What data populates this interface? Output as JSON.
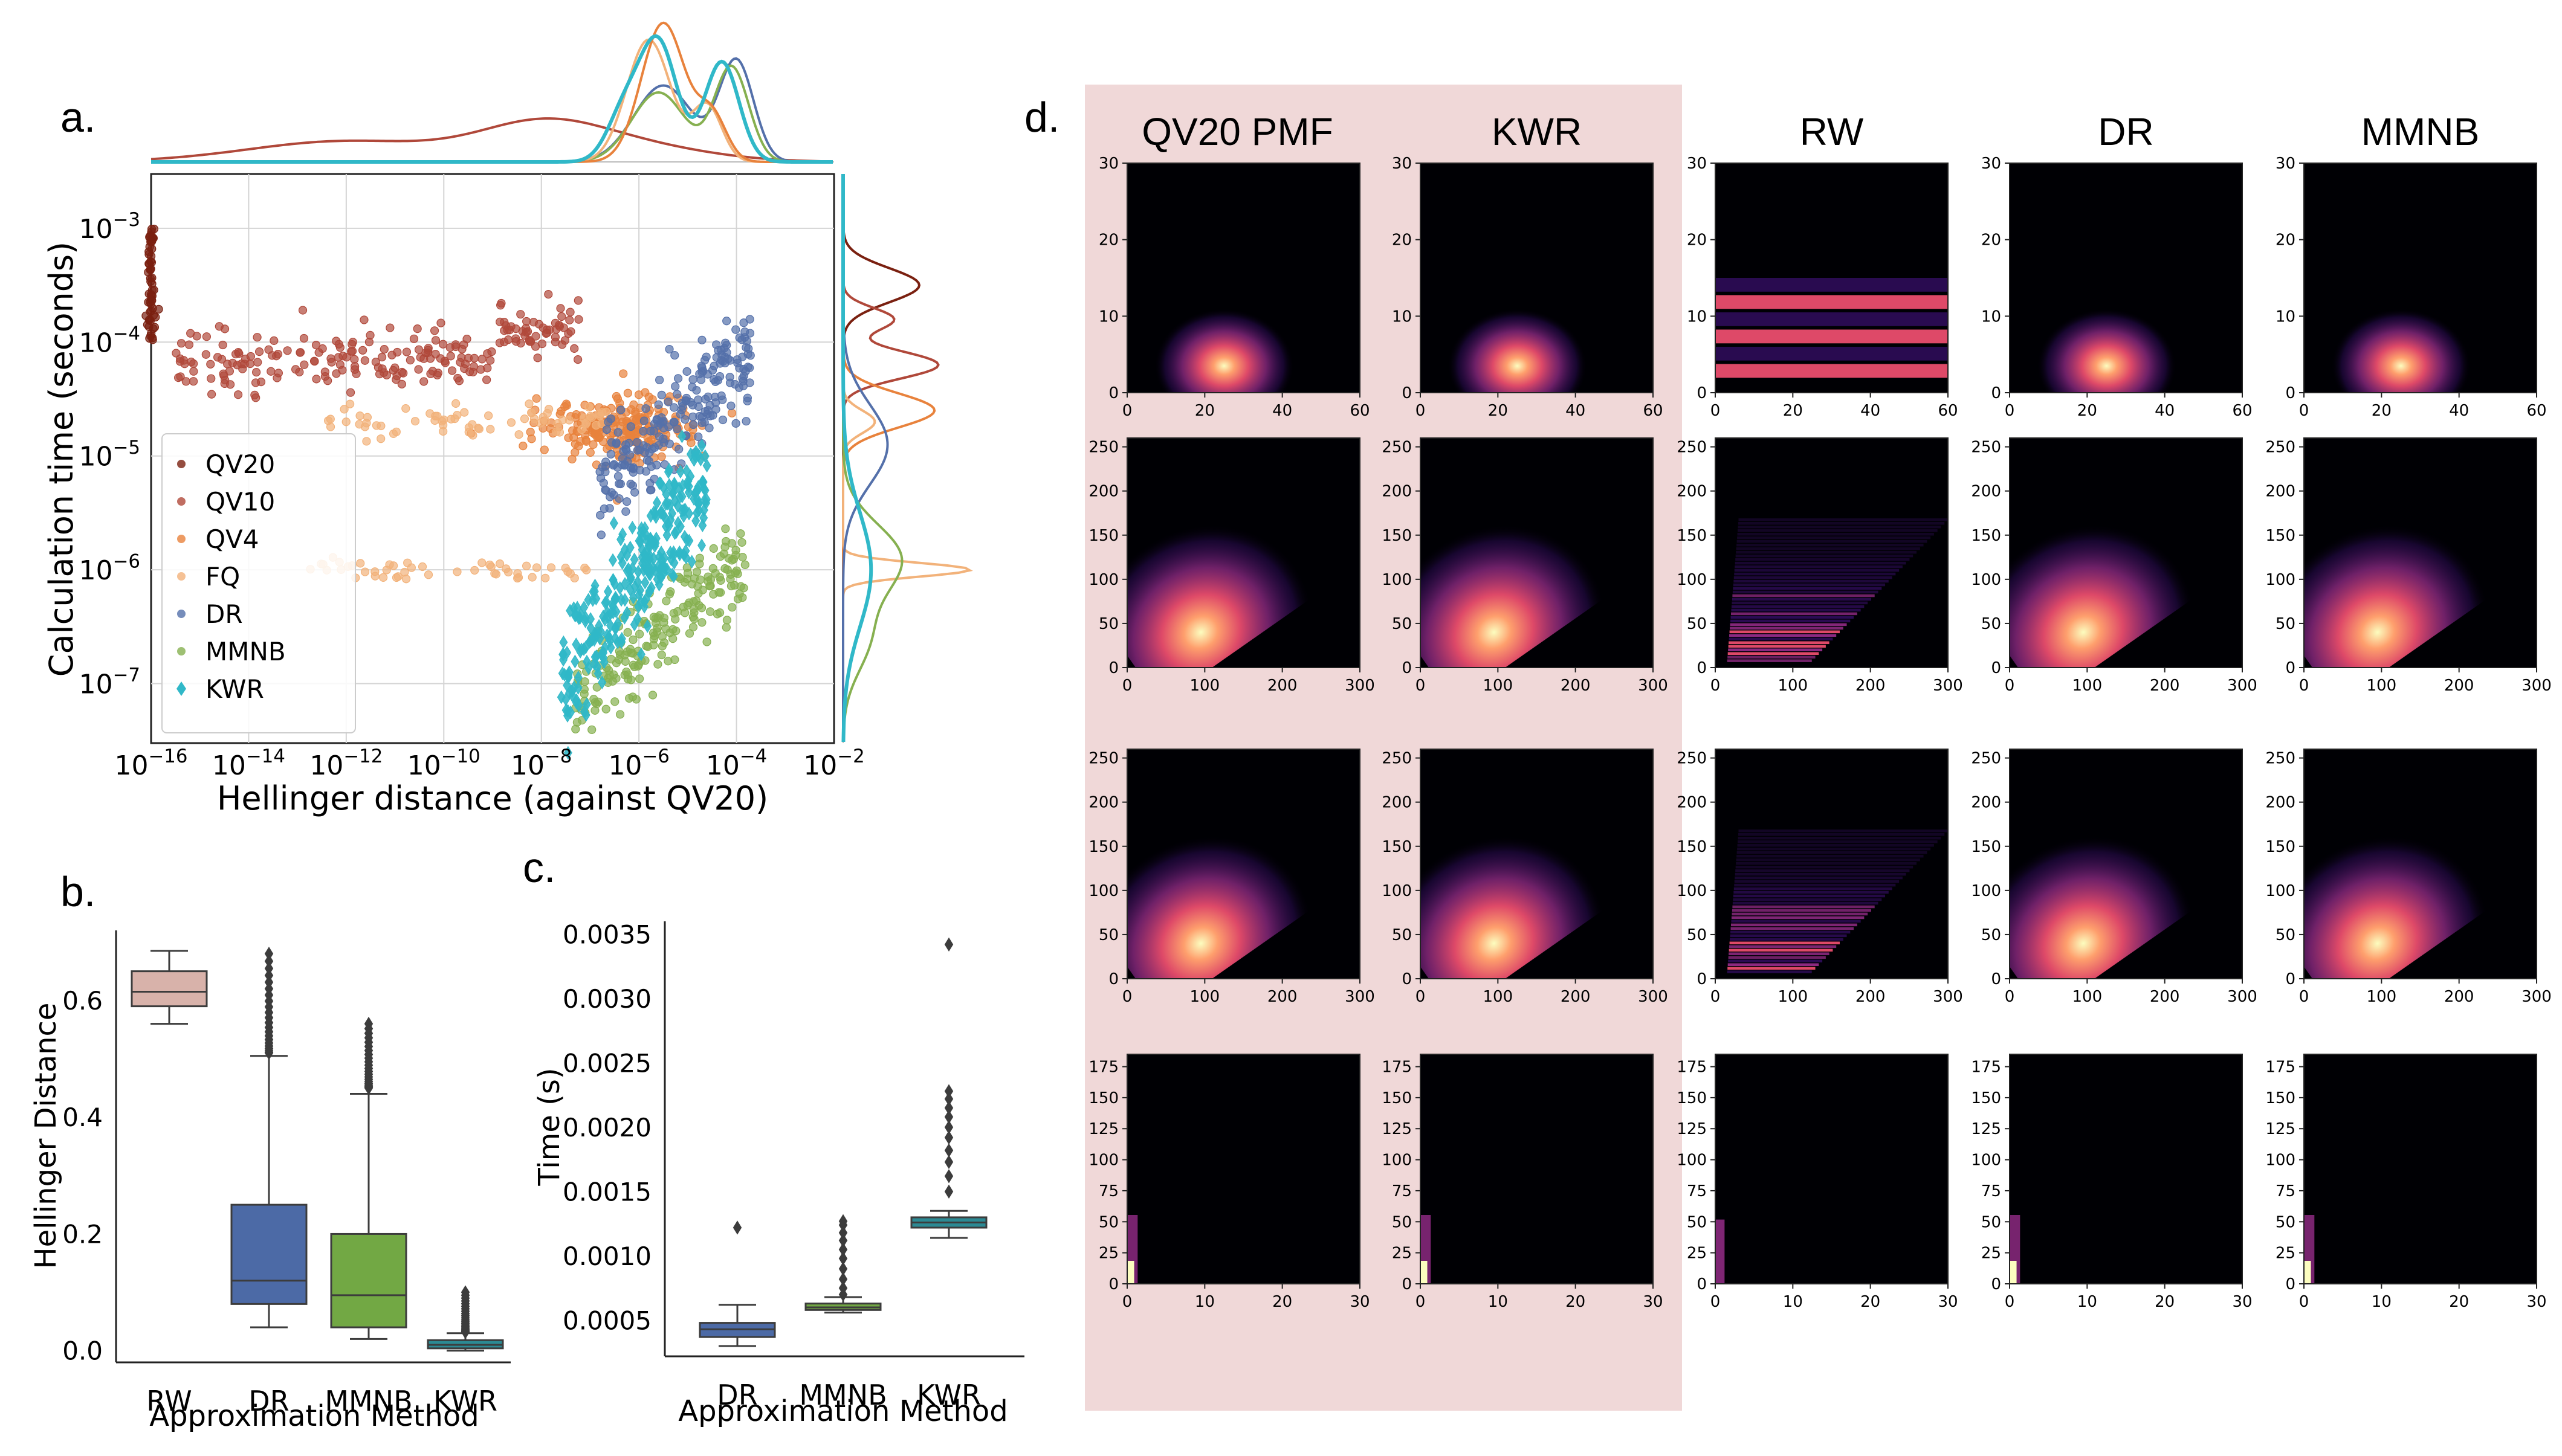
{
  "panel_labels": {
    "a": "a.",
    "b": "b.",
    "c": "c.",
    "d": "d."
  },
  "colors": {
    "QV20": "#7a2010",
    "QV10": "#b0483a",
    "QV4": "#e8823c",
    "FQ": "#f2b27a",
    "DR": "#5470aa",
    "MMNB": "#86b050",
    "KWR": "#30b8c8",
    "RW_box": "#d8b2aa",
    "DR_box": "#4c6aa6",
    "MMNB_box": "#72a844",
    "KWR_box": "#2c8a94",
    "shade": "#f0d8d8"
  },
  "chart_data": [
    {
      "id": "a",
      "type": "scatter",
      "xlabel": "Hellinger distance (against QV20)",
      "ylabel": "Calculation time (seconds)",
      "xscale": "log",
      "yscale": "log",
      "xlim": [
        1e-16,
        0.01
      ],
      "ylim": [
        3e-08,
        0.003
      ],
      "grid": true,
      "legend": "bottom-left",
      "x_ticks": [
        {
          "base": "10",
          "exp": "−16"
        },
        {
          "base": "10",
          "exp": "−14"
        },
        {
          "base": "10",
          "exp": "−12"
        },
        {
          "base": "10",
          "exp": "−10"
        },
        {
          "base": "10",
          "exp": "−8"
        },
        {
          "base": "10",
          "exp": "−6"
        },
        {
          "base": "10",
          "exp": "−4"
        },
        {
          "base": "10",
          "exp": "−2"
        }
      ],
      "y_ticks": [
        {
          "base": "10",
          "exp": "−3"
        },
        {
          "base": "10",
          "exp": "−4"
        },
        {
          "base": "10",
          "exp": "−5"
        },
        {
          "base": "10",
          "exp": "−6"
        },
        {
          "base": "10",
          "exp": "−7"
        }
      ],
      "series": [
        {
          "name": "QV20",
          "marker": "circle",
          "x_log_range": [
            -16,
            -16
          ],
          "y_log_range": [
            -4.0,
            -3.0
          ],
          "n": 60
        },
        {
          "name": "QV10",
          "marker": "circle",
          "x_log_range": [
            -15.5,
            -7.2
          ],
          "y_log_range": [
            -4.35,
            -3.7
          ],
          "n": 230
        },
        {
          "name": "QV4",
          "marker": "circle",
          "x_log_range": [
            -7.5,
            -4.3
          ],
          "y_log_range": [
            -5.1,
            -4.4
          ],
          "n": 230
        },
        {
          "name": "FQ",
          "marker": "circle",
          "x_log_range": [
            -13.2,
            -6.2
          ],
          "y_log_range": [
            -6.1,
            -4.6
          ],
          "n": 120
        },
        {
          "name": "DR",
          "marker": "circle",
          "x_log_range": [
            -6.8,
            -3.7
          ],
          "y_log_range": [
            -5.7,
            -3.9
          ],
          "n": 220
        },
        {
          "name": "MMNB",
          "marker": "circle",
          "x_log_range": [
            -7.3,
            -3.8
          ],
          "y_log_range": [
            -7.4,
            -5.7
          ],
          "n": 200
        },
        {
          "name": "KWR",
          "marker": "diamond",
          "x_log_range": [
            -7.6,
            -4.6
          ],
          "y_log_range": [
            -7.2,
            -5.0
          ],
          "n": 300
        }
      ],
      "top_density_peaks": {
        "QV4": -5.5,
        "FQ": -5.7,
        "KWR": -5.7,
        "DR": -4.0,
        "MMNB": -4.1,
        "QV10": -7.5,
        "QV20": -16
      }
    },
    {
      "id": "b",
      "type": "box",
      "xlabel": "Approximation Method",
      "ylabel": "Hellinger Distance",
      "ylim": [
        -0.02,
        0.72
      ],
      "y_ticks": [
        "0.0",
        "0.2",
        "0.4",
        "0.6"
      ],
      "y_tick_values": [
        0.0,
        0.2,
        0.4,
        0.6
      ],
      "categories": [
        "RW",
        "DR",
        "MMNB",
        "KWR"
      ],
      "boxes": [
        {
          "name": "RW",
          "whislo": 0.56,
          "q1": 0.59,
          "med": 0.615,
          "q3": 0.65,
          "whishi": 0.685,
          "fliers": []
        },
        {
          "name": "DR",
          "whislo": 0.04,
          "q1": 0.08,
          "med": 0.12,
          "q3": 0.25,
          "whishi": 0.505,
          "fliers_range": [
            0.51,
            0.68
          ]
        },
        {
          "name": "MMNB",
          "whislo": 0.02,
          "q1": 0.04,
          "med": 0.095,
          "q3": 0.2,
          "whishi": 0.44,
          "fliers_range": [
            0.45,
            0.56
          ]
        },
        {
          "name": "KWR",
          "whislo": 0.0,
          "q1": 0.004,
          "med": 0.01,
          "q3": 0.018,
          "whishi": 0.03,
          "fliers_range": [
            0.032,
            0.1
          ]
        }
      ]
    },
    {
      "id": "c",
      "type": "box",
      "xlabel": "Approximation Method",
      "ylabel": "Time (s)",
      "ylim": [
        0.00022,
        0.0036
      ],
      "y_ticks": [
        "0.0005",
        "0.0010",
        "0.0015",
        "0.0020",
        "0.0025",
        "0.0030",
        "0.0035"
      ],
      "y_tick_values": [
        0.0005,
        0.001,
        0.0015,
        0.002,
        0.0025,
        0.003,
        0.0035
      ],
      "categories": [
        "DR",
        "MMNB",
        "KWR"
      ],
      "boxes": [
        {
          "name": "DR",
          "whislo": 0.0003,
          "q1": 0.00037,
          "med": 0.00043,
          "q3": 0.00048,
          "whishi": 0.00062,
          "fliers": [
            0.00122
          ]
        },
        {
          "name": "MMNB",
          "whislo": 0.00056,
          "q1": 0.00058,
          "med": 0.0006,
          "q3": 0.00063,
          "whishi": 0.00068,
          "fliers": [
            0.0007,
            0.00075,
            0.00082,
            0.0009,
            0.00098,
            0.00105,
            0.00112,
            0.00118,
            0.00124,
            0.00127
          ]
        },
        {
          "name": "KWR",
          "whislo": 0.00114,
          "q1": 0.00122,
          "med": 0.00126,
          "q3": 0.0013,
          "whishi": 0.00135,
          "fliers": [
            0.0015,
            0.00162,
            0.00173,
            0.00182,
            0.00192,
            0.002,
            0.00208,
            0.00215,
            0.00222,
            0.00228,
            0.00342
          ]
        }
      ]
    },
    {
      "id": "d",
      "type": "heatmap",
      "columns": [
        "QV20 PMF",
        "KWR",
        "RW",
        "DR",
        "MMNB"
      ],
      "shaded_columns": [
        "QV20 PMF",
        "KWR"
      ],
      "colormap": "magma",
      "rows": [
        {
          "xlim": [
            0,
            60
          ],
          "ylim": [
            0,
            30
          ],
          "x_ticks": [
            "0",
            "20",
            "40",
            "60"
          ],
          "y_ticks": [
            "0",
            "10",
            "20",
            "30"
          ],
          "peak": [
            25,
            3.5
          ],
          "spread": [
            10,
            4
          ]
        },
        {
          "xlim": [
            0,
            300
          ],
          "ylim": [
            0,
            260
          ],
          "x_ticks": [
            "0",
            "100",
            "200",
            "300"
          ],
          "y_ticks": [
            "0",
            "50",
            "100",
            "150",
            "200",
            "250"
          ],
          "peak": [
            95,
            40
          ],
          "spread": [
            50,
            40
          ]
        },
        {
          "xlim": [
            0,
            300
          ],
          "ylim": [
            0,
            260
          ],
          "x_ticks": [
            "0",
            "100",
            "200",
            "300"
          ],
          "y_ticks": [
            "0",
            "50",
            "100",
            "150",
            "200",
            "250"
          ],
          "peak": [
            95,
            40
          ],
          "spread": [
            50,
            40
          ]
        },
        {
          "xlim": [
            0,
            30
          ],
          "ylim": [
            0,
            185
          ],
          "x_ticks": [
            "0",
            "10",
            "20",
            "30"
          ],
          "y_ticks": [
            "0",
            "25",
            "50",
            "75",
            "100",
            "125",
            "150",
            "175"
          ],
          "peak": [
            0,
            0
          ],
          "spread": [
            1,
            30
          ]
        }
      ]
    }
  ]
}
